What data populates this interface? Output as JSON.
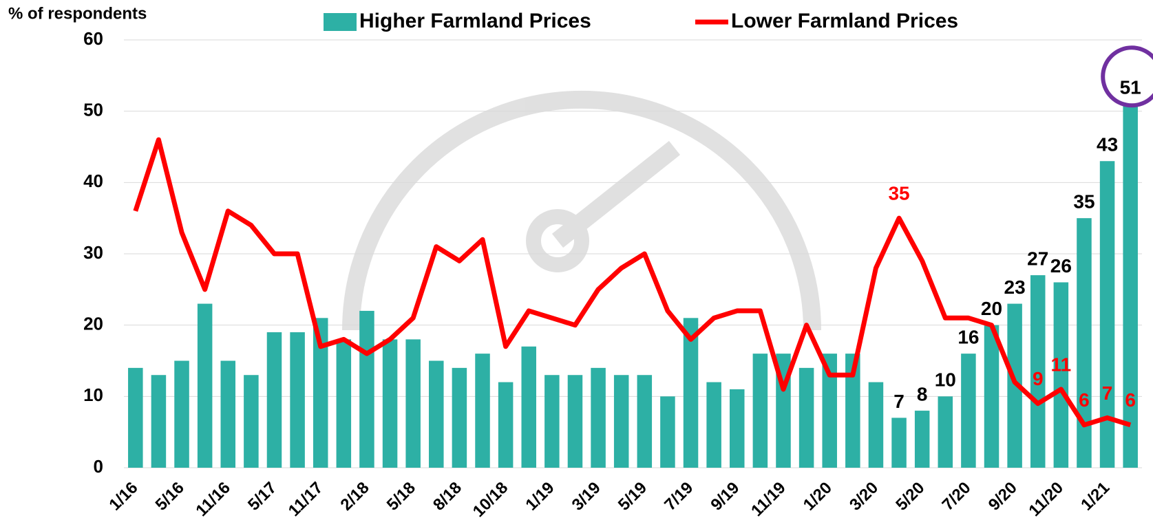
{
  "chart_data": {
    "type": "bar_line",
    "y_axis_label": "% of respondents",
    "categories": [
      "1/16",
      null,
      "5/16",
      null,
      "11/16",
      null,
      "5/17",
      null,
      "11/17",
      null,
      "2/18",
      null,
      "5/18",
      null,
      "8/18",
      null,
      "10/18",
      null,
      "1/19",
      null,
      "3/19",
      null,
      "5/19",
      null,
      "7/19",
      null,
      "9/19",
      null,
      "11/19",
      null,
      "1/20",
      null,
      "3/20",
      null,
      "5/20",
      null,
      "7/20",
      null,
      "9/20",
      null,
      "11/20",
      null,
      "1/21",
      null
    ],
    "series": [
      {
        "name": "Higher Farmland Prices",
        "type": "bar",
        "color": "#2db0a5",
        "values": [
          14,
          13,
          15,
          23,
          15,
          13,
          19,
          19,
          21,
          18,
          22,
          18,
          18,
          15,
          14,
          16,
          12,
          17,
          13,
          13,
          14,
          13,
          13,
          10,
          21,
          12,
          11,
          16,
          16,
          14,
          16,
          16,
          12,
          7,
          8,
          10,
          16,
          20,
          23,
          27,
          26,
          35,
          43,
          51
        ],
        "value_labels": [
          null,
          null,
          null,
          null,
          null,
          null,
          null,
          null,
          null,
          null,
          null,
          null,
          null,
          null,
          null,
          null,
          null,
          null,
          null,
          null,
          null,
          null,
          null,
          null,
          null,
          null,
          null,
          null,
          null,
          null,
          null,
          null,
          null,
          7,
          8,
          10,
          16,
          20,
          23,
          27,
          26,
          35,
          43,
          51
        ]
      },
      {
        "name": "Lower Farmland Prices",
        "type": "line",
        "color": "#ff0000",
        "values": [
          36,
          46,
          33,
          25,
          36,
          34,
          30,
          30,
          17,
          18,
          16,
          18,
          21,
          31,
          29,
          32,
          17,
          22,
          21,
          20,
          25,
          28,
          30,
          22,
          18,
          21,
          22,
          22,
          11,
          20,
          13,
          13,
          28,
          35,
          29,
          21,
          21,
          20,
          12,
          9,
          11,
          6,
          7,
          6
        ],
        "value_labels": [
          null,
          null,
          null,
          null,
          null,
          null,
          null,
          null,
          null,
          null,
          null,
          null,
          null,
          null,
          null,
          null,
          null,
          null,
          null,
          null,
          null,
          null,
          null,
          null,
          null,
          null,
          null,
          null,
          null,
          null,
          null,
          null,
          null,
          35,
          null,
          null,
          null,
          null,
          null,
          9,
          11,
          6,
          7,
          6
        ]
      }
    ],
    "ylim": [
      0,
      60
    ],
    "yticks": [
      0,
      10,
      20,
      30,
      40,
      50,
      60
    ],
    "grid": true,
    "legend": "top",
    "highlight_color": "#7030a0"
  }
}
